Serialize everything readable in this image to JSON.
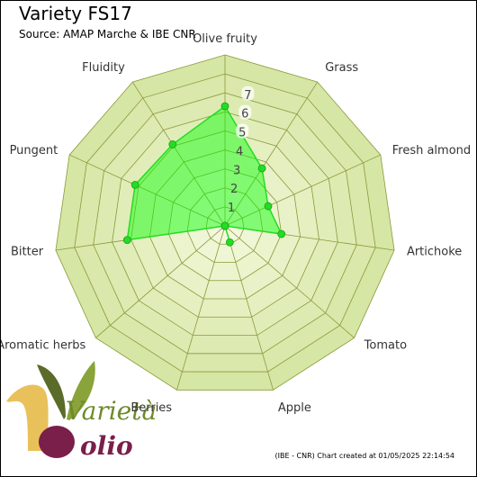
{
  "title": "Variety FS17",
  "subtitle": "Source: AMAP Marche & IBE CNR",
  "credit": "(IBE - CNR) Chart created at 01/05/2025 22:14:54",
  "logo_text": {
    "top": "Varietà",
    "bottom": "olio"
  },
  "colors": {
    "ring_fill_outer": "#d6e6a4",
    "ring_fill_inner": "#f3f8dc",
    "grid_stroke": "#8a9a3a",
    "series_fill": "rgba(0,255,0,0.45)",
    "series_stroke": "#22dd22",
    "point_fill": "#22dd22"
  },
  "chart_data": {
    "type": "radar",
    "axes": [
      "Olive fruity",
      "Grass",
      "Fresh almond",
      "Artichoke",
      "Tomato",
      "Apple",
      "Berries",
      "Aromatic herbs",
      "Bitter",
      "Pungent",
      "Fluidity"
    ],
    "rlim": [
      0,
      9
    ],
    "rticks": [
      1,
      2,
      3,
      4,
      5,
      6,
      7
    ],
    "grid": true,
    "series": [
      {
        "values": [
          6.3,
          3.6,
          2.5,
          3.0,
          0.0,
          0.9,
          0.0,
          0.0,
          5.2,
          5.2,
          5.1
        ]
      }
    ]
  }
}
